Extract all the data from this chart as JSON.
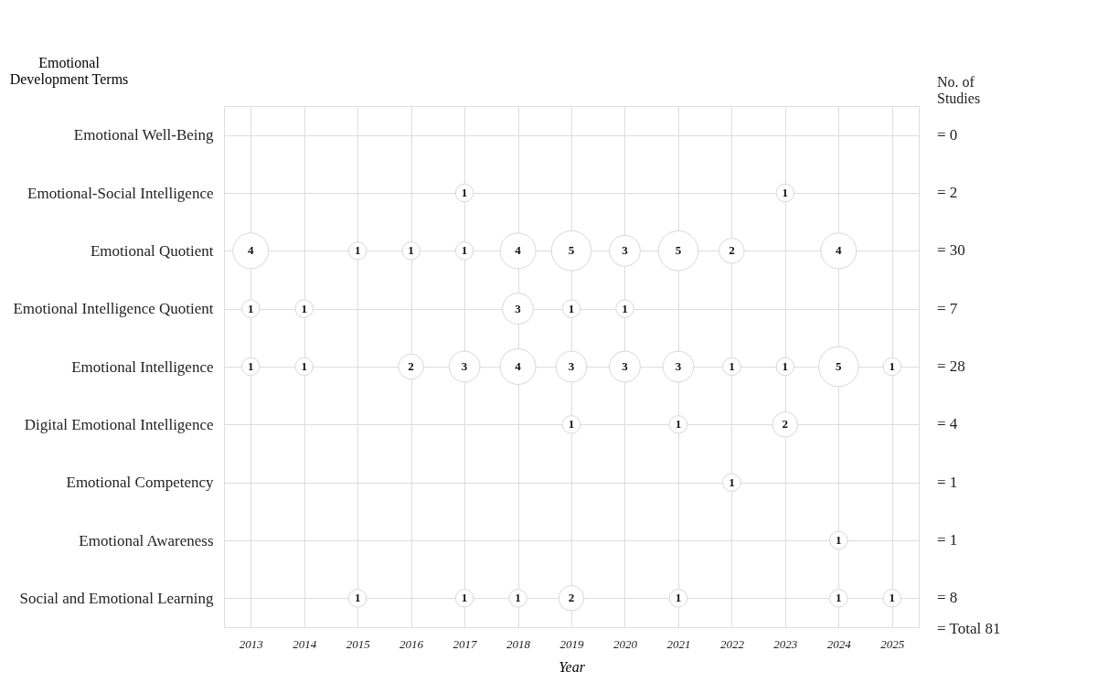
{
  "chart_data": {
    "type": "heatmap",
    "ylabel": "Emotional Development Terms",
    "y2label": "No. of Studies",
    "xlabel": "Year",
    "categories": [
      "2013",
      "2014",
      "2015",
      "2016",
      "2017",
      "2018",
      "2019",
      "2020",
      "2021",
      "2022",
      "2023",
      "2024",
      "2025"
    ],
    "y_categories": [
      "Emotional Well-Being",
      "Emotional-Social Intelligence",
      "Emotional Quotient",
      "Emotional Intelligence Quotient",
      "Emotional Intelligence",
      "Digital Emotional Intelligence",
      "Emotional Competency",
      "Emotional  Awareness",
      "Social and Emotional Learning"
    ],
    "y2_categories": [
      "= 0",
      "= 2",
      "= 30",
      "= 7",
      "= 28",
      "= 4",
      "= 1",
      "= 1",
      "= 8"
    ],
    "cells": [
      [
        null,
        null,
        null,
        null,
        null,
        null,
        null,
        null,
        null,
        null,
        null,
        null,
        null
      ],
      [
        null,
        null,
        null,
        null,
        1,
        null,
        null,
        null,
        null,
        null,
        1,
        null,
        null
      ],
      [
        4,
        null,
        1,
        1,
        1,
        4,
        5,
        3,
        5,
        2,
        null,
        4,
        null
      ],
      [
        1,
        1,
        null,
        null,
        null,
        3,
        1,
        1,
        null,
        null,
        null,
        null,
        null
      ],
      [
        1,
        1,
        null,
        2,
        3,
        4,
        3,
        3,
        3,
        1,
        1,
        5,
        1
      ],
      [
        null,
        null,
        null,
        null,
        null,
        null,
        1,
        null,
        1,
        null,
        2,
        null,
        null
      ],
      [
        null,
        null,
        null,
        null,
        null,
        null,
        null,
        null,
        null,
        1,
        null,
        null,
        null
      ],
      [
        null,
        null,
        null,
        null,
        null,
        null,
        null,
        null,
        null,
        null,
        null,
        1,
        null
      ],
      [
        null,
        null,
        1,
        null,
        1,
        1,
        2,
        null,
        1,
        null,
        null,
        1,
        1
      ]
    ],
    "data_labels": true,
    "grid": true,
    "annotations": [
      "= Total 81"
    ]
  }
}
